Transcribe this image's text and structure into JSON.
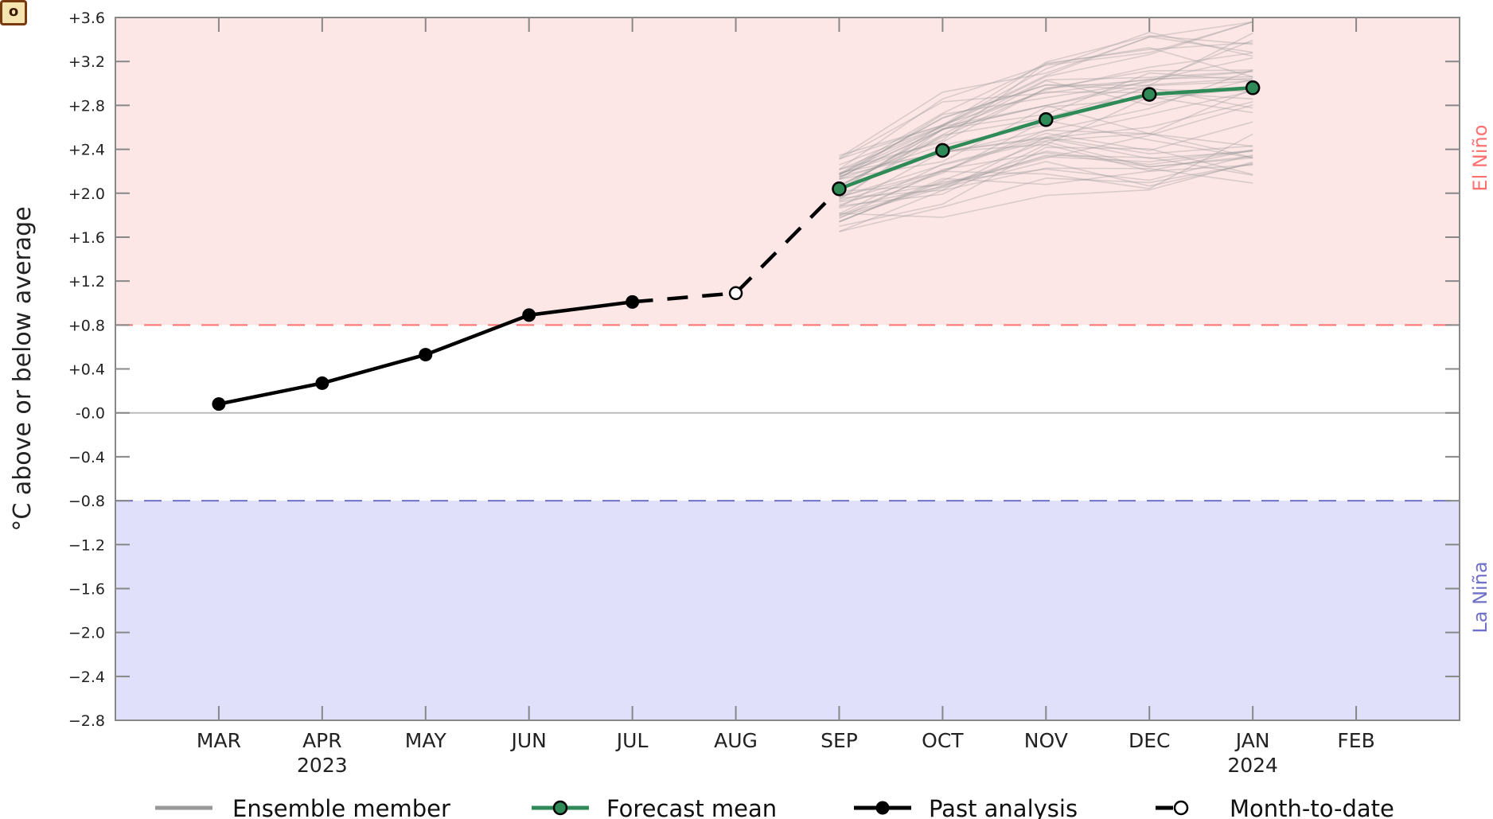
{
  "chart_data": {
    "type": "line",
    "ylabel": "°C above or below average",
    "ylim": [
      -2.8,
      3.6
    ],
    "yticks": [
      3.6,
      3.2,
      2.8,
      2.4,
      2.0,
      1.6,
      1.2,
      0.8,
      0.4,
      0.0,
      -0.4,
      -0.8,
      -1.2,
      -1.6,
      -2.0,
      -2.4,
      -2.8
    ],
    "ytick_labels": [
      "+3.6",
      "+3.2",
      "+2.8",
      "+2.4",
      "+2.0",
      "+1.6",
      "+1.2",
      "+0.8",
      "+0.4",
      "-0.0",
      "−0.4",
      "−0.8",
      "−1.2",
      "−1.6",
      "−2.0",
      "−2.4",
      "−2.8"
    ],
    "x_categories": [
      "MAR",
      "APR",
      "MAY",
      "JUN",
      "JUL",
      "AUG",
      "SEP",
      "OCT",
      "NOV",
      "DEC",
      "JAN",
      "FEB"
    ],
    "x_sublabels": [
      "",
      "2023",
      "",
      "",
      "",
      "",
      "",
      "",
      "",
      "",
      "2024",
      ""
    ],
    "xlim": [
      -1,
      12
    ],
    "thresholds": {
      "el_nino": {
        "value": 0.8,
        "label": "El Niño",
        "color": "#ff7070",
        "fill": "#fde6e6"
      },
      "la_nina": {
        "value": -0.8,
        "label": "La Niña",
        "color": "#7070c8",
        "fill": "#e0e0fb"
      }
    },
    "series": [
      {
        "name": "Past analysis",
        "color": "#000000",
        "points": [
          {
            "x": "MAR",
            "y": 0.08
          },
          {
            "x": "APR",
            "y": 0.27
          },
          {
            "x": "MAY",
            "y": 0.53
          },
          {
            "x": "JUN",
            "y": 0.89
          },
          {
            "x": "JUL",
            "y": 1.01
          }
        ]
      },
      {
        "name": "Month-to-date",
        "color": "#000000",
        "points": [
          {
            "x": "AUG",
            "y": 1.09
          }
        ]
      },
      {
        "name": "Forecast mean",
        "color": "#2e8b57",
        "points": [
          {
            "x": "SEP",
            "y": 2.04
          },
          {
            "x": "OCT",
            "y": 2.39
          },
          {
            "x": "NOV",
            "y": 2.67
          },
          {
            "x": "DEC",
            "y": 2.9
          },
          {
            "x": "JAN",
            "y": 2.96
          }
        ]
      }
    ],
    "ensemble": {
      "name": "Ensemble member",
      "color": "#999999",
      "count": 50,
      "months": [
        "SEP",
        "OCT",
        "NOV",
        "DEC",
        "JAN"
      ],
      "y_range_by_month": [
        [
          1.65,
          2.35
        ],
        [
          1.78,
          2.92
        ],
        [
          1.98,
          3.25
        ],
        [
          1.92,
          3.5
        ],
        [
          1.98,
          3.56
        ]
      ]
    },
    "legend": {
      "placement": "bottom",
      "items": [
        {
          "label": "Ensemble member",
          "style": "ensemble"
        },
        {
          "label": "Forecast mean",
          "style": "forecast"
        },
        {
          "label": "Past analysis",
          "style": "past"
        },
        {
          "label": "Month-to-date",
          "style": "mtd"
        }
      ]
    },
    "grid": false
  },
  "logo": {
    "icon": "logo-icon",
    "text": "o"
  }
}
